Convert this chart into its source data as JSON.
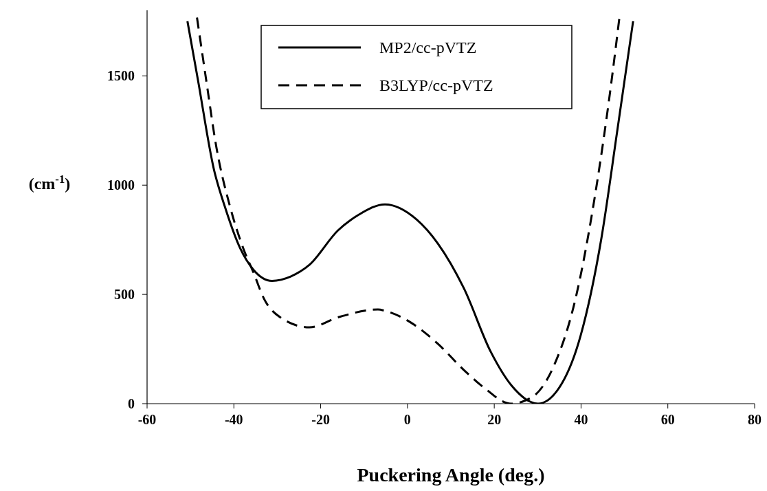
{
  "chart_data": {
    "type": "line",
    "xlabel": "Puckering Angle (deg.)",
    "ylabel": "(cm$^{-1}$)",
    "xlim": [
      -60,
      80
    ],
    "xticks": [
      -60,
      -40,
      -20,
      0,
      20,
      40,
      60,
      80
    ],
    "ylim": [
      0,
      1800
    ],
    "yticks": [
      0,
      500,
      1000,
      1500
    ],
    "grid": false,
    "legend": "top",
    "series": [
      {
        "name": "MP2/cc-pVTZ",
        "color": "#000000",
        "line_style": "solid",
        "x": [
          -50.7,
          -48.3,
          -44.6,
          -42.1,
          -38.5,
          -35.5,
          -31.2,
          -26.9,
          -22.6,
          -16,
          -11.1,
          -5.2,
          2.1,
          7,
          13,
          19.2,
          24.1,
          30.1,
          34.4,
          39.9,
          44.7,
          48.3,
          52
        ],
        "values": [
          1750,
          1484,
          1072,
          903,
          709,
          613,
          562,
          582,
          635,
          793,
          866,
          912,
          843,
          733,
          528,
          237,
          80,
          0,
          57,
          311,
          758,
          1242,
          1750
        ]
      },
      {
        "name": "B3LYP/cc-pVTZ",
        "color": "#000000",
        "line_style": "dashed",
        "x": [
          -48.5,
          -46.4,
          -44,
          -40.9,
          -37.8,
          -35.5,
          -33,
          -29.3,
          -22.6,
          -16,
          -6.8,
          -5.2,
          0.8,
          7,
          13,
          17.9,
          23.8,
          28.8,
          33.8,
          38.7,
          43.6,
          46.6,
          48.8
        ],
        "values": [
          1767,
          1484,
          1170,
          903,
          709,
          601,
          478,
          395,
          349,
          395,
          431,
          425,
          371,
          274,
          154,
          69,
          0,
          31,
          176,
          478,
          1000,
          1412,
          1760
        ]
      }
    ]
  }
}
